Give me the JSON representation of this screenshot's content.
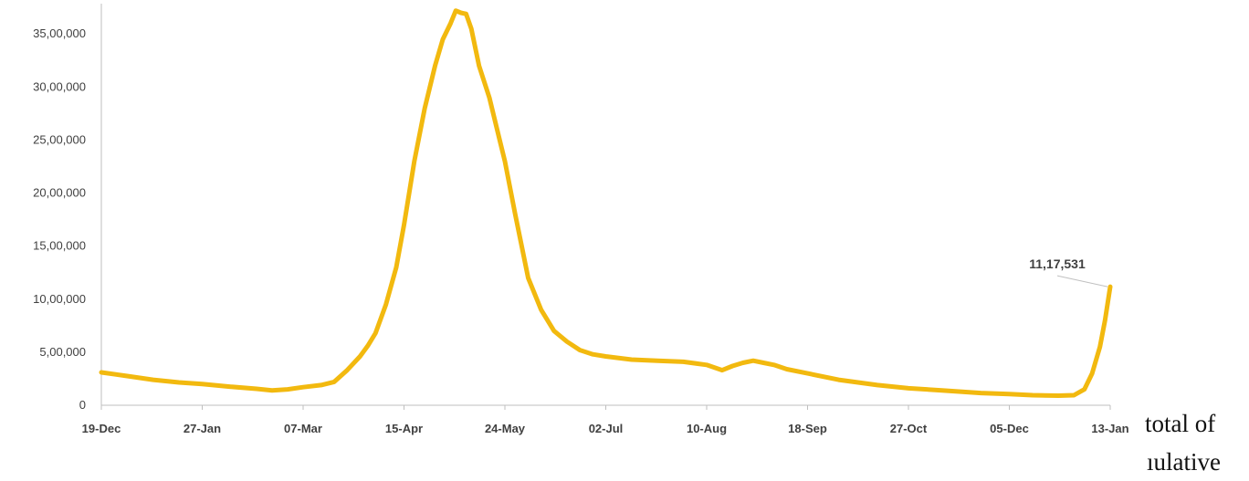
{
  "chart_data": {
    "type": "line",
    "title": "",
    "xlabel": "",
    "ylabel": "",
    "ylim": [
      0,
      3700000
    ],
    "y_ticks": [
      "0",
      "5,00,000",
      "10,00,000",
      "15,00,000",
      "20,00,000",
      "25,00,000",
      "30,00,000",
      "35,00,000"
    ],
    "y_tick_values": [
      0,
      500000,
      1000000,
      1500000,
      2000000,
      2500000,
      3000000,
      3500000
    ],
    "x_tick_labels": [
      "19-Dec",
      "27-Jan",
      "07-Mar",
      "15-Apr",
      "24-May",
      "02-Jul",
      "10-Aug",
      "18-Sep",
      "27-Oct",
      "05-Dec",
      "13-Jan"
    ],
    "x_tick_day_index": [
      0,
      39,
      78,
      117,
      156,
      195,
      234,
      273,
      312,
      351,
      390
    ],
    "grid": false,
    "line_color": "#F2B90F",
    "series": [
      {
        "points": [
          [
            0,
            310000
          ],
          [
            10,
            275000
          ],
          [
            20,
            240000
          ],
          [
            30,
            215000
          ],
          [
            39,
            200000
          ],
          [
            50,
            175000
          ],
          [
            60,
            155000
          ],
          [
            66,
            140000
          ],
          [
            72,
            150000
          ],
          [
            78,
            170000
          ],
          [
            85,
            190000
          ],
          [
            90,
            220000
          ],
          [
            95,
            330000
          ],
          [
            100,
            460000
          ],
          [
            103,
            560000
          ],
          [
            106,
            680000
          ],
          [
            110,
            950000
          ],
          [
            114,
            1300000
          ],
          [
            117,
            1700000
          ],
          [
            121,
            2300000
          ],
          [
            125,
            2800000
          ],
          [
            129,
            3200000
          ],
          [
            132,
            3450000
          ],
          [
            135,
            3600000
          ],
          [
            137,
            3720000
          ],
          [
            139,
            3700000
          ],
          [
            141,
            3690000
          ],
          [
            143,
            3550000
          ],
          [
            146,
            3200000
          ],
          [
            150,
            2900000
          ],
          [
            154,
            2500000
          ],
          [
            156,
            2300000
          ],
          [
            160,
            1800000
          ],
          [
            165,
            1200000
          ],
          [
            170,
            900000
          ],
          [
            175,
            700000
          ],
          [
            180,
            600000
          ],
          [
            185,
            520000
          ],
          [
            190,
            480000
          ],
          [
            195,
            460000
          ],
          [
            205,
            430000
          ],
          [
            215,
            420000
          ],
          [
            225,
            410000
          ],
          [
            234,
            380000
          ],
          [
            240,
            330000
          ],
          [
            244,
            370000
          ],
          [
            248,
            400000
          ],
          [
            252,
            420000
          ],
          [
            256,
            400000
          ],
          [
            260,
            380000
          ],
          [
            265,
            340000
          ],
          [
            273,
            300000
          ],
          [
            285,
            240000
          ],
          [
            300,
            190000
          ],
          [
            312,
            160000
          ],
          [
            325,
            140000
          ],
          [
            340,
            115000
          ],
          [
            351,
            105000
          ],
          [
            360,
            95000
          ],
          [
            370,
            90000
          ],
          [
            376,
            95000
          ],
          [
            380,
            150000
          ],
          [
            383,
            300000
          ],
          [
            386,
            550000
          ],
          [
            388,
            800000
          ],
          [
            390,
            1117531
          ]
        ]
      }
    ],
    "annotation": {
      "text": "11,17,531",
      "day_index": 390,
      "value": 1117531
    },
    "side_text": [
      "total of",
      "ıulative"
    ]
  }
}
